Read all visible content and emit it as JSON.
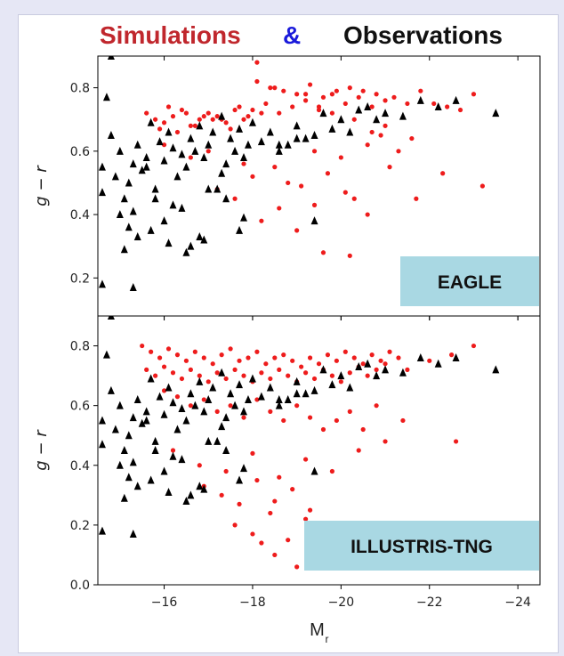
{
  "title": {
    "part1": "Simulations",
    "part2": "&",
    "part3": "Observations",
    "color1": "#c0272d",
    "color2": "#1a1adb",
    "color3": "#111111"
  },
  "colors": {
    "simulation": "#ee1c1c",
    "observation": "#000000",
    "badge": "#a9d8e3"
  },
  "chart_data": [
    {
      "type": "scatter",
      "label": "EAGLE",
      "ylabel": "g − r",
      "xlabel": "",
      "xlim": [
        -14.5,
        -24.5
      ],
      "ylim": [
        0.08,
        0.9
      ],
      "yticks": [
        0.2,
        0.4,
        0.6,
        0.8
      ],
      "yticklabels": [
        "0.2",
        "0.4",
        "0.6",
        "0.8"
      ],
      "xticks": [
        -16,
        -18,
        -20,
        -22,
        -24
      ],
      "series": [
        {
          "marker": "dot",
          "x": [
            -15.6,
            -15.8,
            -16.0,
            -16.2,
            -16.4,
            -16.6,
            -16.8,
            -17.0,
            -17.2,
            -17.4,
            -17.6,
            -17.8,
            -15.9,
            -16.3,
            -16.7,
            -17.1,
            -17.5,
            -17.9,
            -18.2,
            -16.1,
            -16.5,
            -16.9,
            -17.3,
            -17.7,
            -18.0,
            -18.3,
            -18.6,
            -18.9,
            -19.2,
            -19.5,
            -19.8,
            -20.1,
            -20.4,
            -20.7,
            -21.0,
            -18.1,
            -18.4,
            -18.7,
            -19.0,
            -19.3,
            -19.6,
            -19.9,
            -20.2,
            -20.5,
            -20.8,
            -21.2,
            -21.5,
            -21.8,
            -22.1,
            -22.4,
            -22.7,
            -23.0,
            -17.2,
            -17.6,
            -18.0,
            -18.5,
            -18.8,
            -19.1,
            -19.4,
            -19.7,
            -20.0,
            -20.3,
            -20.6,
            -20.9,
            -21.3,
            -21.6,
            -16.0,
            -16.6,
            -17.0,
            -17.8,
            -18.2,
            -18.6,
            -19.0,
            -19.4,
            -20.1,
            -20.6,
            -21.1,
            -21.7,
            -22.3,
            -23.2,
            -18.1,
            -18.5,
            -19.2,
            -19.5,
            -19.8,
            -20.3,
            -20.7,
            -21.0,
            -19.6,
            -20.2
          ],
          "y": [
            0.72,
            0.7,
            0.69,
            0.71,
            0.73,
            0.68,
            0.7,
            0.72,
            0.71,
            0.69,
            0.73,
            0.7,
            0.67,
            0.66,
            0.68,
            0.7,
            0.67,
            0.71,
            0.72,
            0.74,
            0.72,
            0.71,
            0.7,
            0.74,
            0.73,
            0.75,
            0.72,
            0.74,
            0.76,
            0.73,
            0.78,
            0.75,
            0.77,
            0.74,
            0.76,
            0.82,
            0.8,
            0.79,
            0.78,
            0.81,
            0.77,
            0.79,
            0.8,
            0.79,
            0.78,
            0.77,
            0.75,
            0.79,
            0.75,
            0.74,
            0.73,
            0.78,
            0.48,
            0.45,
            0.52,
            0.55,
            0.5,
            0.49,
            0.6,
            0.53,
            0.58,
            0.45,
            0.62,
            0.65,
            0.6,
            0.64,
            0.62,
            0.58,
            0.6,
            0.56,
            0.38,
            0.42,
            0.35,
            0.43,
            0.47,
            0.4,
            0.55,
            0.45,
            0.53,
            0.49,
            0.88,
            0.8,
            0.78,
            0.74,
            0.72,
            0.7,
            0.66,
            0.68,
            0.28,
            0.27
          ]
        },
        {
          "marker": "triangle",
          "x": [
            -14.6,
            -14.7,
            -14.8,
            -14.9,
            -15.0,
            -15.1,
            -15.2,
            -15.3,
            -15.4,
            -15.5,
            -15.6,
            -15.7,
            -15.8,
            -15.9,
            -16.0,
            -16.1,
            -16.2,
            -16.3,
            -16.4,
            -16.5,
            -16.6,
            -16.7,
            -16.8,
            -16.9,
            -17.0,
            -17.1,
            -17.2,
            -17.3,
            -17.4,
            -17.5,
            -17.6,
            -17.7,
            -17.8,
            -17.9,
            -18.0,
            -18.2,
            -18.4,
            -18.6,
            -18.8,
            -19.0,
            -19.2,
            -19.4,
            -19.6,
            -19.8,
            -20.0,
            -20.2,
            -20.4,
            -20.6,
            -20.8,
            -21.0,
            -21.4,
            -21.8,
            -22.2,
            -22.6,
            -23.5,
            -14.8,
            -15.0,
            -15.2,
            -15.4,
            -15.6,
            -15.8,
            -16.0,
            -16.2,
            -16.4,
            -16.6,
            -16.8,
            -17.0,
            -17.4,
            -17.8,
            -18.6,
            -19.4,
            -14.6,
            -15.1,
            -15.3,
            -15.7,
            -16.1,
            -16.5,
            -16.9,
            -17.3,
            -17.7,
            -19.0,
            -14.6,
            -15.3
          ],
          "y": [
            0.55,
            0.77,
            0.65,
            0.52,
            0.6,
            0.45,
            0.5,
            0.56,
            0.62,
            0.54,
            0.58,
            0.69,
            0.48,
            0.63,
            0.57,
            0.66,
            0.61,
            0.52,
            0.59,
            0.55,
            0.64,
            0.6,
            0.68,
            0.58,
            0.62,
            0.66,
            0.48,
            0.71,
            0.56,
            0.64,
            0.6,
            0.67,
            0.58,
            0.62,
            0.69,
            0.63,
            0.66,
            0.6,
            0.62,
            0.68,
            0.64,
            0.65,
            0.72,
            0.67,
            0.7,
            0.66,
            0.73,
            0.74,
            0.7,
            0.72,
            0.71,
            0.76,
            0.74,
            0.76,
            0.72,
            0.9,
            0.4,
            0.36,
            0.33,
            0.55,
            0.45,
            0.38,
            0.43,
            0.42,
            0.3,
            0.33,
            0.48,
            0.45,
            0.39,
            0.62,
            0.38,
            0.18,
            0.29,
            0.17,
            0.35,
            0.31,
            0.28,
            0.32,
            0.53,
            0.35,
            0.64,
            0.47,
            0.41
          ]
        }
      ]
    },
    {
      "type": "scatter",
      "label": "ILLUSTRIS-TNG",
      "ylabel": "g − r",
      "xlabel": "M",
      "xlabel_sub": "r",
      "xlim": [
        -14.5,
        -24.5
      ],
      "ylim": [
        0.0,
        0.9
      ],
      "yticks": [
        0.0,
        0.2,
        0.4,
        0.6,
        0.8
      ],
      "yticklabels": [
        "0.0",
        "0.2",
        "0.4",
        "0.6",
        "0.8"
      ],
      "xticks": [
        -16,
        -18,
        -20,
        -22,
        -24
      ],
      "xticklabels": [
        "−16",
        "−18",
        "−20",
        "−22",
        "−24"
      ],
      "series": [
        {
          "marker": "dot",
          "x": [
            -15.5,
            -15.7,
            -15.9,
            -16.1,
            -16.3,
            -16.5,
            -16.7,
            -16.9,
            -17.1,
            -17.3,
            -17.5,
            -17.7,
            -17.9,
            -18.1,
            -18.3,
            -18.5,
            -18.7,
            -18.9,
            -19.1,
            -19.3,
            -19.5,
            -19.7,
            -19.9,
            -20.1,
            -20.3,
            -20.5,
            -20.7,
            -20.9,
            -21.1,
            -21.3,
            -15.6,
            -15.8,
            -16.0,
            -16.2,
            -16.4,
            -16.6,
            -16.8,
            -17.0,
            -17.2,
            -17.4,
            -17.6,
            -17.8,
            -18.0,
            -18.2,
            -18.4,
            -18.6,
            -18.8,
            -19.0,
            -19.2,
            -19.4,
            -19.6,
            -19.8,
            -20.0,
            -20.2,
            -20.4,
            -20.6,
            -20.8,
            -21.0,
            -21.5,
            -22.0,
            -22.5,
            -23.0,
            -16.0,
            -16.3,
            -16.6,
            -16.9,
            -17.2,
            -17.5,
            -17.8,
            -18.1,
            -18.4,
            -18.7,
            -19.0,
            -19.3,
            -19.6,
            -19.9,
            -20.2,
            -20.5,
            -20.8,
            -21.4,
            -22.6,
            -16.2,
            -16.8,
            -17.4,
            -18.0,
            -18.6,
            -19.2,
            -19.8,
            -20.4,
            -21.0,
            -16.9,
            -17.3,
            -17.7,
            -18.1,
            -18.5,
            -18.9,
            -19.3,
            -17.6,
            -18.0,
            -18.4,
            -18.8,
            -19.2,
            -18.2,
            -18.5,
            -19.0
          ],
          "y": [
            0.8,
            0.78,
            0.76,
            0.79,
            0.77,
            0.75,
            0.78,
            0.76,
            0.74,
            0.77,
            0.79,
            0.75,
            0.76,
            0.78,
            0.74,
            0.76,
            0.77,
            0.75,
            0.73,
            0.76,
            0.74,
            0.77,
            0.75,
            0.78,
            0.76,
            0.74,
            0.77,
            0.75,
            0.78,
            0.76,
            0.72,
            0.7,
            0.73,
            0.71,
            0.69,
            0.72,
            0.7,
            0.68,
            0.71,
            0.69,
            0.72,
            0.7,
            0.68,
            0.71,
            0.69,
            0.72,
            0.7,
            0.68,
            0.71,
            0.69,
            0.72,
            0.7,
            0.68,
            0.71,
            0.73,
            0.7,
            0.72,
            0.74,
            0.72,
            0.75,
            0.77,
            0.8,
            0.65,
            0.63,
            0.6,
            0.62,
            0.58,
            0.6,
            0.56,
            0.62,
            0.58,
            0.55,
            0.6,
            0.56,
            0.52,
            0.55,
            0.58,
            0.52,
            0.6,
            0.55,
            0.48,
            0.45,
            0.4,
            0.38,
            0.44,
            0.36,
            0.42,
            0.38,
            0.45,
            0.48,
            0.33,
            0.3,
            0.27,
            0.35,
            0.28,
            0.32,
            0.25,
            0.2,
            0.17,
            0.24,
            0.15,
            0.22,
            0.14,
            0.1,
            0.06
          ]
        },
        {
          "marker": "triangle",
          "x": [
            -14.6,
            -14.7,
            -14.8,
            -14.9,
            -15.0,
            -15.1,
            -15.2,
            -15.3,
            -15.4,
            -15.5,
            -15.6,
            -15.7,
            -15.8,
            -15.9,
            -16.0,
            -16.1,
            -16.2,
            -16.3,
            -16.4,
            -16.5,
            -16.6,
            -16.7,
            -16.8,
            -16.9,
            -17.0,
            -17.1,
            -17.2,
            -17.3,
            -17.4,
            -17.5,
            -17.6,
            -17.7,
            -17.8,
            -17.9,
            -18.0,
            -18.2,
            -18.4,
            -18.6,
            -18.8,
            -19.0,
            -19.2,
            -19.4,
            -19.6,
            -19.8,
            -20.0,
            -20.2,
            -20.4,
            -20.6,
            -20.8,
            -21.0,
            -21.4,
            -21.8,
            -22.2,
            -22.6,
            -23.5,
            -14.8,
            -15.0,
            -15.2,
            -15.4,
            -15.6,
            -15.8,
            -16.0,
            -16.2,
            -16.4,
            -16.6,
            -16.8,
            -17.0,
            -17.4,
            -17.8,
            -18.6,
            -19.4,
            -14.6,
            -15.1,
            -15.3,
            -15.7,
            -16.1,
            -16.5,
            -16.9,
            -17.3,
            -17.7,
            -19.0,
            -14.6,
            -15.3
          ],
          "y": [
            0.55,
            0.77,
            0.65,
            0.52,
            0.6,
            0.45,
            0.5,
            0.56,
            0.62,
            0.54,
            0.58,
            0.69,
            0.48,
            0.63,
            0.57,
            0.66,
            0.61,
            0.52,
            0.59,
            0.55,
            0.64,
            0.6,
            0.68,
            0.58,
            0.62,
            0.66,
            0.48,
            0.71,
            0.56,
            0.64,
            0.6,
            0.67,
            0.58,
            0.62,
            0.69,
            0.63,
            0.66,
            0.6,
            0.62,
            0.68,
            0.64,
            0.65,
            0.72,
            0.67,
            0.7,
            0.66,
            0.73,
            0.74,
            0.7,
            0.72,
            0.71,
            0.76,
            0.74,
            0.76,
            0.72,
            0.9,
            0.4,
            0.36,
            0.33,
            0.55,
            0.45,
            0.38,
            0.43,
            0.42,
            0.3,
            0.33,
            0.48,
            0.45,
            0.39,
            0.62,
            0.38,
            0.18,
            0.29,
            0.17,
            0.35,
            0.31,
            0.28,
            0.32,
            0.53,
            0.35,
            0.64,
            0.47,
            0.41
          ]
        }
      ]
    }
  ]
}
